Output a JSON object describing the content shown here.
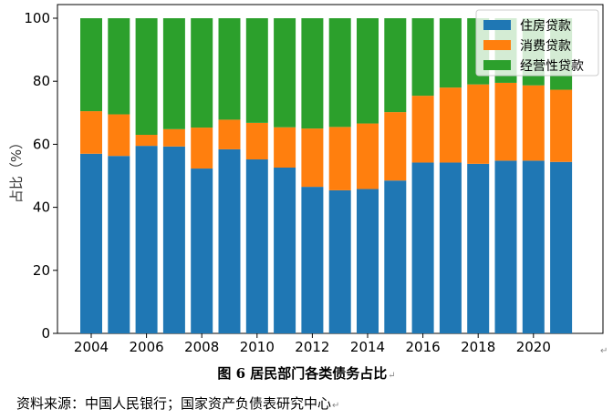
{
  "chart_data": {
    "type": "bar",
    "stacked": true,
    "title": "",
    "xlabel": "",
    "ylabel": "占比（%）",
    "ylim": [
      0,
      100
    ],
    "yticks": [
      0,
      20,
      40,
      60,
      80,
      100
    ],
    "xticks": [
      "2004",
      "2006",
      "2008",
      "2010",
      "2012",
      "2014",
      "2016",
      "2018",
      "2020"
    ],
    "categories": [
      "2004",
      "2005",
      "2006",
      "2007",
      "2008",
      "2009",
      "2010",
      "2011",
      "2012",
      "2013",
      "2014",
      "2015",
      "2016",
      "2017",
      "2018",
      "2019",
      "2020",
      "2021"
    ],
    "legend_position": "top-right",
    "grid": false,
    "series": [
      {
        "name": "住房贷款",
        "color": "#1f77b4",
        "values": [
          57.0,
          56.3,
          59.5,
          59.3,
          52.3,
          58.4,
          55.2,
          52.6,
          46.5,
          45.4,
          45.8,
          48.5,
          54.2,
          54.2,
          53.8,
          54.8,
          54.8,
          54.4
        ]
      },
      {
        "name": "消费贷款",
        "color": "#ff7f0e",
        "values": [
          13.5,
          13.2,
          3.5,
          5.5,
          13.0,
          9.4,
          11.6,
          12.8,
          18.5,
          20.1,
          20.8,
          21.7,
          21.2,
          23.8,
          25.2,
          24.7,
          23.9,
          22.9
        ]
      },
      {
        "name": "经营性贷款",
        "color": "#2ca02c",
        "values": [
          29.5,
          30.5,
          37.0,
          35.2,
          34.7,
          32.2,
          33.2,
          34.6,
          35.0,
          34.5,
          33.4,
          29.8,
          24.6,
          22.0,
          21.0,
          20.5,
          21.3,
          22.7
        ]
      }
    ]
  },
  "caption": "图 6  居民部门各类债务占比",
  "source": "资料来源：中国人民银行；国家资产负债表研究中心",
  "marks": {
    "paragraph": "↵"
  }
}
